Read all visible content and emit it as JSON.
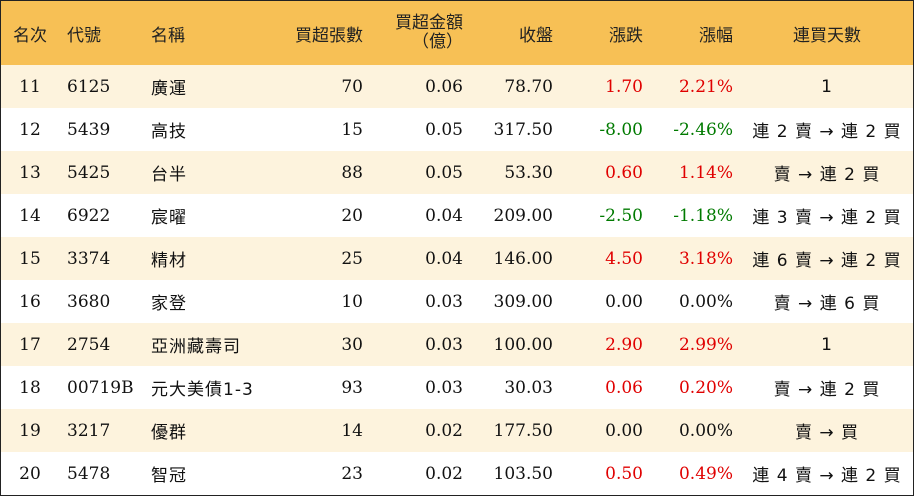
{
  "colors": {
    "header_bg": "#f7c055",
    "stripe_bg": "#fdf3dd",
    "up": "#e00000",
    "down": "#007a00",
    "flat": "#111111"
  },
  "headers": {
    "rank": "名次",
    "code": "代號",
    "name": "名稱",
    "net_lots": "買超張數",
    "amount_line1": "買超金額",
    "amount_line2": "（億）",
    "close": "收盤",
    "change": "漲跌",
    "pct": "漲幅",
    "days": "連買天數"
  },
  "rows": [
    {
      "rank": "11",
      "code": "6125",
      "name": "廣運",
      "net_lots": "70",
      "amount": "0.06",
      "close": "78.70",
      "change": "1.70",
      "pct": "2.21%",
      "days": "1",
      "dir": "up"
    },
    {
      "rank": "12",
      "code": "5439",
      "name": "高技",
      "net_lots": "15",
      "amount": "0.05",
      "close": "317.50",
      "change": "-8.00",
      "pct": "-2.46%",
      "days": "連 2 賣 → 連 2 買",
      "dir": "down"
    },
    {
      "rank": "13",
      "code": "5425",
      "name": "台半",
      "net_lots": "88",
      "amount": "0.05",
      "close": "53.30",
      "change": "0.60",
      "pct": "1.14%",
      "days": "賣 → 連 2 買",
      "dir": "up"
    },
    {
      "rank": "14",
      "code": "6922",
      "name": "宸曜",
      "net_lots": "20",
      "amount": "0.04",
      "close": "209.00",
      "change": "-2.50",
      "pct": "-1.18%",
      "days": "連 3 賣 → 連 2 買",
      "dir": "down"
    },
    {
      "rank": "15",
      "code": "3374",
      "name": "精材",
      "net_lots": "25",
      "amount": "0.04",
      "close": "146.00",
      "change": "4.50",
      "pct": "3.18%",
      "days": "連 6 賣 → 連 2 買",
      "dir": "up"
    },
    {
      "rank": "16",
      "code": "3680",
      "name": "家登",
      "net_lots": "10",
      "amount": "0.03",
      "close": "309.00",
      "change": "0.00",
      "pct": "0.00%",
      "days": "賣 → 連 6 買",
      "dir": "flat"
    },
    {
      "rank": "17",
      "code": "2754",
      "name": "亞洲藏壽司",
      "net_lots": "30",
      "amount": "0.03",
      "close": "100.00",
      "change": "2.90",
      "pct": "2.99%",
      "days": "1",
      "dir": "up"
    },
    {
      "rank": "18",
      "code": "00719B",
      "name": "元大美債1-3",
      "net_lots": "93",
      "amount": "0.03",
      "close": "30.03",
      "change": "0.06",
      "pct": "0.20%",
      "days": "賣 → 連 2 買",
      "dir": "up"
    },
    {
      "rank": "19",
      "code": "3217",
      "name": "優群",
      "net_lots": "14",
      "amount": "0.02",
      "close": "177.50",
      "change": "0.00",
      "pct": "0.00%",
      "days": "賣 → 買",
      "dir": "flat"
    },
    {
      "rank": "20",
      "code": "5478",
      "name": "智冠",
      "net_lots": "23",
      "amount": "0.02",
      "close": "103.50",
      "change": "0.50",
      "pct": "0.49%",
      "days": "連 4 賣 → 連 2 買",
      "dir": "up"
    }
  ]
}
